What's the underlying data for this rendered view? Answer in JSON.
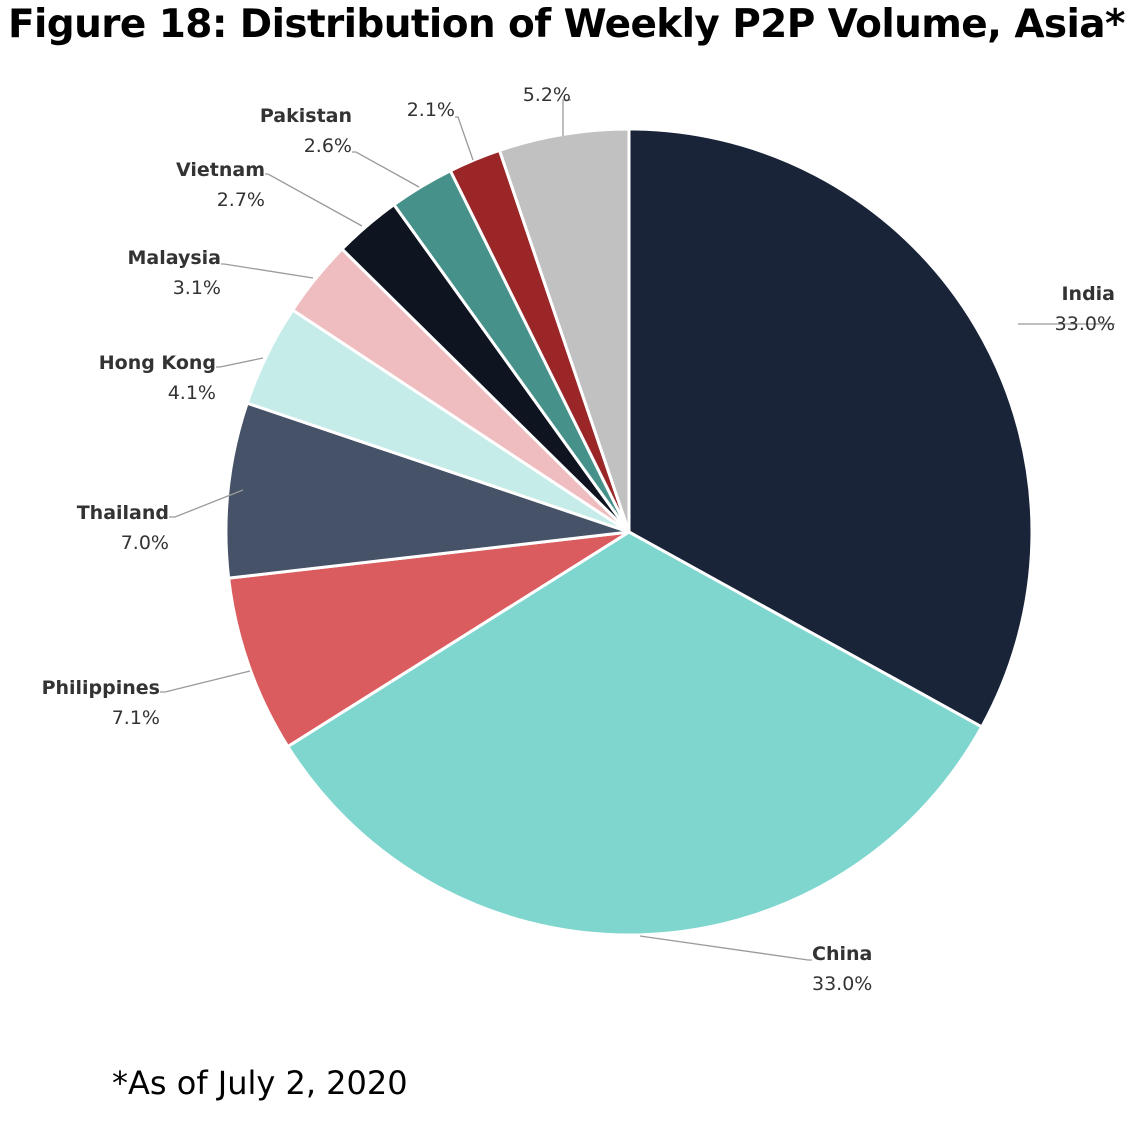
{
  "chart_data": {
    "type": "pie",
    "title": "Figure 18: Distribution of Weekly P2P Volume, Asia*",
    "footnote": "*As of July 2, 2020",
    "slices": [
      {
        "label": "India",
        "value": 33.0,
        "value_label": "33.0%",
        "color": "#1a2439"
      },
      {
        "label": "China",
        "value": 33.0,
        "value_label": "33.0%",
        "color": "#7ed6cf"
      },
      {
        "label": "Philippines",
        "value": 7.1,
        "value_label": "7.1%",
        "color": "#db5c5e"
      },
      {
        "label": "Thailand",
        "value": 7.0,
        "value_label": "7.0%",
        "color": "#465267"
      },
      {
        "label": "Hong Kong",
        "value": 4.1,
        "value_label": "4.1%",
        "color": "#c6ecea"
      },
      {
        "label": "Malaysia",
        "value": 3.1,
        "value_label": "3.1%",
        "color": "#efbcbf"
      },
      {
        "label": "Vietnam",
        "value": 2.7,
        "value_label": "2.7%",
        "color": "#0f1520"
      },
      {
        "label": "Pakistan",
        "value": 2.6,
        "value_label": "2.6%",
        "color": "#46918a"
      },
      {
        "label": "",
        "value": 2.1,
        "value_label": "2.1%",
        "color": "#9a2628"
      },
      {
        "label": "",
        "value": 5.2,
        "value_label": "5.2%",
        "color": "#c1c1c1"
      }
    ]
  }
}
